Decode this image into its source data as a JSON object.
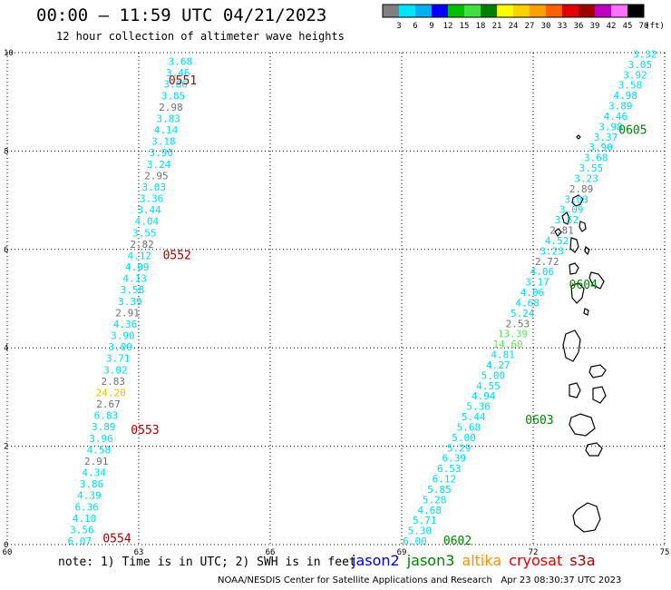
{
  "header": {
    "title": "00:00 – 11:59 UTC 04/21/2023",
    "subtitle": "12 hour collection of altimeter wave heights"
  },
  "colorbar": {
    "unit": "(ft)",
    "labels": [
      "3",
      "6",
      "9",
      "12",
      "15",
      "18",
      "21",
      "24",
      "27",
      "30",
      "33",
      "36",
      "39",
      "42",
      "45",
      "70"
    ],
    "colors": [
      "#808080",
      "#00e5ff",
      "#00b0f0",
      "#0000ff",
      "#00c000",
      "#40e040",
      "#008000",
      "#ffff00",
      "#ffd000",
      "#ffa000",
      "#ff6000",
      "#e00000",
      "#a00000",
      "#c000c0",
      "#ff70ff",
      "#000000"
    ]
  },
  "axes": {
    "x_ticks": [
      "60",
      "63",
      "66",
      "69",
      "72",
      "75"
    ],
    "y_ticks": [
      "0",
      "2",
      "4",
      "6",
      "8",
      "10"
    ],
    "x_range": [
      60,
      75
    ],
    "y_range": [
      0,
      10
    ]
  },
  "colors": {
    "cyan": "#00d8ff",
    "gray": "#707070",
    "yellow": "#f0c000",
    "lightgreen": "#60e060",
    "pass_red": "#a00000",
    "pass_green": "#008000"
  },
  "map_data": {
    "type": "altimeter-track-map",
    "passes": [
      {
        "label": "0551",
        "color": "pass_red",
        "x": 63.68,
        "y": 9.35
      },
      {
        "label": "0552",
        "color": "pass_red",
        "x": 63.55,
        "y": 5.8
      },
      {
        "label": "0553",
        "color": "pass_red",
        "x": 62.82,
        "y": 2.25
      },
      {
        "label": "0554",
        "color": "pass_red",
        "x": 62.18,
        "y": 0.05
      },
      {
        "label": "0605",
        "color": "pass_green",
        "x": 73.95,
        "y": 8.35
      },
      {
        "label": "0604",
        "color": "pass_green",
        "x": 72.82,
        "y": 5.2
      },
      {
        "label": "0603",
        "color": "pass_green",
        "x": 71.82,
        "y": 2.45
      },
      {
        "label": "0602",
        "color": "pass_green",
        "x": 69.95,
        "y": 0.0
      }
    ],
    "tracks": [
      {
        "name": "left",
        "start": [
          63.95,
          9.75
        ],
        "end": [
          61.65,
          0.0
        ],
        "values": [
          [
            "3.68",
            "cyan"
          ],
          [
            "3.46",
            "cyan"
          ],
          [
            "3.86",
            "cyan"
          ],
          [
            "3.85",
            "cyan"
          ],
          [
            "2.98",
            "gray"
          ],
          [
            "3.83",
            "cyan"
          ],
          [
            "4.14",
            "cyan"
          ],
          [
            "3.18",
            "cyan"
          ],
          [
            "3.90",
            "cyan"
          ],
          [
            "3.24",
            "cyan"
          ],
          [
            "2.95",
            "gray"
          ],
          [
            "3.03",
            "cyan"
          ],
          [
            "3.36",
            "cyan"
          ],
          [
            "3.44",
            "cyan"
          ],
          [
            "4.04",
            "cyan"
          ],
          [
            "3.55",
            "cyan"
          ],
          [
            "2.82",
            "gray"
          ],
          [
            "4.12",
            "cyan"
          ],
          [
            "4.09",
            "cyan"
          ],
          [
            "4.13",
            "cyan"
          ],
          [
            "3.58",
            "cyan"
          ],
          [
            "3.39",
            "cyan"
          ],
          [
            "2.91",
            "gray"
          ],
          [
            "4.36",
            "cyan"
          ],
          [
            "3.90",
            "cyan"
          ],
          [
            "3.09",
            "cyan"
          ],
          [
            "3.71",
            "cyan"
          ],
          [
            "3.02",
            "cyan"
          ],
          [
            "2.83",
            "gray"
          ],
          [
            "24.20",
            "yellow"
          ],
          [
            "2.67",
            "gray"
          ],
          [
            "6.83",
            "cyan"
          ],
          [
            "3.89",
            "cyan"
          ],
          [
            "3.96",
            "cyan"
          ],
          [
            "4.58",
            "cyan"
          ],
          [
            "2.91",
            "gray"
          ],
          [
            "4.34",
            "cyan"
          ],
          [
            "3.86",
            "cyan"
          ],
          [
            "4.39",
            "cyan"
          ],
          [
            "6.36",
            "cyan"
          ],
          [
            "4.10",
            "cyan"
          ],
          [
            "3.56",
            "cyan"
          ],
          [
            "6.07",
            "cyan"
          ]
        ]
      },
      {
        "name": "right",
        "start": [
          74.55,
          9.9
        ],
        "end": [
          69.3,
          0.0
        ],
        "values": [
          [
            "3.32",
            "cyan"
          ],
          [
            "3.05",
            "cyan"
          ],
          [
            "3.92",
            "cyan"
          ],
          [
            "3.58",
            "cyan"
          ],
          [
            "4.98",
            "cyan"
          ],
          [
            "3.89",
            "cyan"
          ],
          [
            "4.46",
            "cyan"
          ],
          [
            "3.98",
            "cyan"
          ],
          [
            "3.37",
            "cyan"
          ],
          [
            "3.90",
            "cyan"
          ],
          [
            "3.68",
            "cyan"
          ],
          [
            "3.55",
            "cyan"
          ],
          [
            "3.23",
            "cyan"
          ],
          [
            "2.89",
            "gray"
          ],
          [
            "3.03",
            "cyan"
          ],
          [
            "3.09",
            "cyan"
          ],
          [
            "3.52",
            "cyan"
          ],
          [
            "2.81",
            "gray"
          ],
          [
            "4.52",
            "cyan"
          ],
          [
            "3.23",
            "cyan"
          ],
          [
            "2.72",
            "gray"
          ],
          [
            "4.06",
            "cyan"
          ],
          [
            "3.17",
            "cyan"
          ],
          [
            "4.06",
            "cyan"
          ],
          [
            "4.68",
            "cyan"
          ],
          [
            "5.24",
            "cyan"
          ],
          [
            "2.53",
            "gray"
          ],
          [
            "13.39",
            "lightgreen"
          ],
          [
            "14.60",
            "lightgreen"
          ],
          [
            "4.81",
            "cyan"
          ],
          [
            "4.27",
            "cyan"
          ],
          [
            "5.00",
            "cyan"
          ],
          [
            "4.55",
            "cyan"
          ],
          [
            "4.94",
            "cyan"
          ],
          [
            "5.36",
            "cyan"
          ],
          [
            "5.44",
            "cyan"
          ],
          [
            "5.68",
            "cyan"
          ],
          [
            "5.00",
            "cyan"
          ],
          [
            "5.29",
            "cyan"
          ],
          [
            "6.39",
            "cyan"
          ],
          [
            "6.53",
            "cyan"
          ],
          [
            "6.12",
            "cyan"
          ],
          [
            "5.85",
            "cyan"
          ],
          [
            "5.28",
            "cyan"
          ],
          [
            "4.68",
            "cyan"
          ],
          [
            "5.71",
            "cyan"
          ],
          [
            "5.30",
            "cyan"
          ],
          [
            "6.00",
            "cyan"
          ]
        ]
      }
    ]
  },
  "footer": {
    "note": "note: 1) Time is in UTC; 2) SWH is in feet",
    "legend": [
      {
        "label": "jason2",
        "color": "#0000e0"
      },
      {
        "label": "jason3",
        "color": "#008000"
      },
      {
        "label": "altika",
        "color": "#ff9000"
      },
      {
        "label": "cryosat",
        "color": "#e00000"
      },
      {
        "label": "s3a",
        "color": "#a00000"
      }
    ],
    "credit": "NOAA/NESDIS Center for Satellite Applications and Research   Apr 23 08:30:37 UTC 2023"
  }
}
